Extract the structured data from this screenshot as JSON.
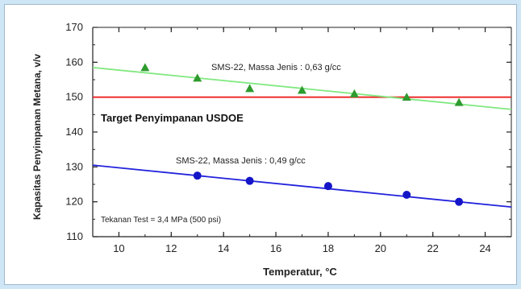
{
  "chart_data": {
    "type": "scatter",
    "xlabel": "Temperatur, °C",
    "ylabel": "Kapasitas Penyimpanan Metana, v/v",
    "xlim": [
      9,
      25
    ],
    "ylim": [
      110,
      170
    ],
    "x_ticks": [
      10,
      12,
      14,
      16,
      18,
      20,
      22,
      24
    ],
    "y_ticks": [
      110,
      120,
      130,
      140,
      150,
      160,
      170
    ],
    "grid": false,
    "series": [
      {
        "name": "SMS-22, Massa Jenis : 0,63 g/cc",
        "marker": "triangle",
        "color": "#2e9b2e",
        "line_color": "#80e880",
        "x": [
          11,
          13,
          15,
          17,
          19,
          21,
          23
        ],
        "y": [
          158.5,
          155.5,
          152.5,
          152,
          151,
          150,
          148.5
        ],
        "fit": {
          "x": [
            9,
            25
          ],
          "y": [
            158.5,
            146.5
          ]
        }
      },
      {
        "name": "SMS-22, Massa Jenis : 0,49 g/cc",
        "marker": "circle",
        "color": "#1515c8",
        "line_color": "#2222dd",
        "x": [
          13,
          15,
          18,
          21,
          23
        ],
        "y": [
          127.5,
          126,
          124.5,
          122,
          120
        ],
        "fit": {
          "x": [
            9,
            25
          ],
          "y": [
            130.5,
            118.5
          ]
        }
      }
    ],
    "reference_lines": [
      {
        "name": "Target Penyimpanan USDOE",
        "y": 150,
        "color": "#ee2020"
      }
    ],
    "annotations": {
      "target": "Target Penyimpanan USDOE",
      "condition": "Tekanan Test = 3,4 MPa (500 psi)"
    }
  }
}
